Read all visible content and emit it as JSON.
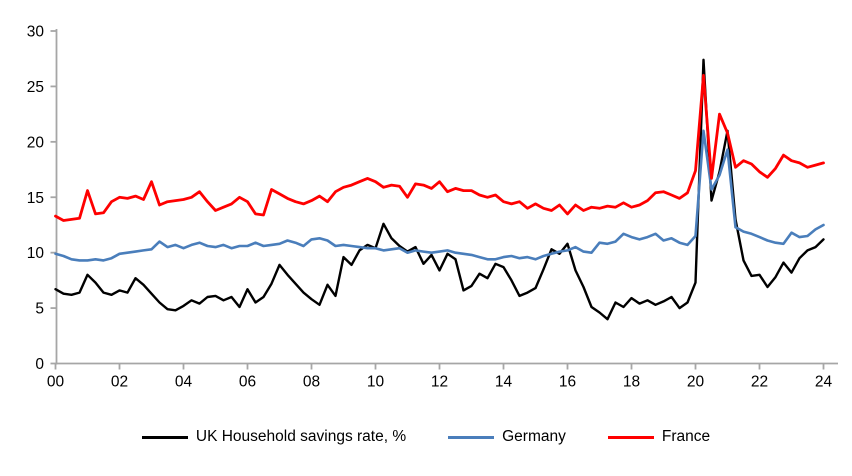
{
  "chart_data": {
    "type": "line",
    "title": "",
    "xlabel": "",
    "ylabel": "",
    "x_start_year": 2000,
    "x_step_years": 0.25,
    "x_end_year": 2024,
    "ylim": [
      0,
      30
    ],
    "y_ticks": [
      0,
      5,
      10,
      15,
      20,
      25,
      30
    ],
    "y_tick_labels": [
      "0",
      "5",
      "10",
      "15",
      "20",
      "25",
      "30"
    ],
    "x_tick_years": [
      2000,
      2002,
      2004,
      2006,
      2008,
      2010,
      2012,
      2014,
      2016,
      2018,
      2020,
      2022,
      2024
    ],
    "x_tick_labels": [
      "00",
      "02",
      "04",
      "06",
      "08",
      "10",
      "12",
      "14",
      "16",
      "18",
      "20",
      "22",
      "24"
    ],
    "grid": false,
    "legend_position": "bottom",
    "axis_color": "#a6a6a6",
    "tick_label_color": "#000000",
    "series": [
      {
        "name": "UK Household savings rate, %",
        "color": "#000000",
        "stroke_width": 2.4,
        "values": [
          6.7,
          6.3,
          6.2,
          6.4,
          8.0,
          7.3,
          6.4,
          6.2,
          6.6,
          6.4,
          7.7,
          7.1,
          6.3,
          5.5,
          4.9,
          4.8,
          5.2,
          5.7,
          5.4,
          6.0,
          6.1,
          5.7,
          6.0,
          5.1,
          6.7,
          5.5,
          6.0,
          7.2,
          8.9,
          8.0,
          7.2,
          6.4,
          5.8,
          5.3,
          7.1,
          6.1,
          9.6,
          8.9,
          10.2,
          10.7,
          10.4,
          12.6,
          11.3,
          10.6,
          10.1,
          10.5,
          9.0,
          9.8,
          8.4,
          9.9,
          9.4,
          6.6,
          7.0,
          8.1,
          7.7,
          9.0,
          8.7,
          7.5,
          6.1,
          6.4,
          6.8,
          8.5,
          10.3,
          9.9,
          10.8,
          8.4,
          6.9,
          5.1,
          4.6,
          4.0,
          5.5,
          5.1,
          5.9,
          5.4,
          5.7,
          5.3,
          5.6,
          6.0,
          5.0,
          5.5,
          7.3,
          27.4,
          14.7,
          17.3,
          21.0,
          13.0,
          9.3,
          7.9,
          8.0,
          6.9,
          7.8,
          9.1,
          8.2,
          9.5,
          10.2,
          10.5,
          11.2
        ]
      },
      {
        "name": "Germany",
        "color": "#4a7ebb",
        "stroke_width": 2.6,
        "values": [
          9.9,
          9.7,
          9.4,
          9.3,
          9.3,
          9.4,
          9.3,
          9.5,
          9.9,
          10.0,
          10.1,
          10.2,
          10.3,
          11.0,
          10.5,
          10.7,
          10.4,
          10.7,
          10.9,
          10.6,
          10.5,
          10.7,
          10.4,
          10.6,
          10.6,
          10.9,
          10.6,
          10.7,
          10.8,
          11.1,
          10.9,
          10.6,
          11.2,
          11.3,
          11.1,
          10.6,
          10.7,
          10.6,
          10.5,
          10.4,
          10.4,
          10.2,
          10.3,
          10.4,
          10.0,
          10.2,
          10.1,
          10.0,
          10.1,
          10.2,
          10.0,
          9.9,
          9.8,
          9.6,
          9.4,
          9.4,
          9.6,
          9.7,
          9.5,
          9.6,
          9.4,
          9.7,
          9.9,
          10.1,
          10.2,
          10.5,
          10.1,
          10.0,
          10.9,
          10.8,
          11.0,
          11.7,
          11.4,
          11.2,
          11.4,
          11.7,
          11.1,
          11.3,
          10.9,
          10.7,
          11.5,
          21.0,
          15.7,
          17.0,
          19.3,
          12.3,
          11.9,
          11.7,
          11.4,
          11.1,
          10.9,
          10.8,
          11.8,
          11.4,
          11.5,
          12.1,
          12.5
        ]
      },
      {
        "name": "France",
        "color": "#ff0000",
        "stroke_width": 2.8,
        "values": [
          13.3,
          12.9,
          13.0,
          13.1,
          15.6,
          13.5,
          13.6,
          14.6,
          15.0,
          14.9,
          15.1,
          14.8,
          16.4,
          14.3,
          14.6,
          14.7,
          14.8,
          15.0,
          15.5,
          14.6,
          13.8,
          14.1,
          14.4,
          15.0,
          14.6,
          13.5,
          13.4,
          15.7,
          15.3,
          14.9,
          14.6,
          14.4,
          14.7,
          15.1,
          14.6,
          15.5,
          15.9,
          16.1,
          16.4,
          16.7,
          16.4,
          15.9,
          16.1,
          16.0,
          15.0,
          16.2,
          16.1,
          15.8,
          16.4,
          15.5,
          15.8,
          15.6,
          15.6,
          15.2,
          15.0,
          15.2,
          14.6,
          14.4,
          14.6,
          14.0,
          14.4,
          14.0,
          13.8,
          14.3,
          13.5,
          14.3,
          13.8,
          14.1,
          14.0,
          14.2,
          14.1,
          14.5,
          14.1,
          14.3,
          14.7,
          15.4,
          15.5,
          15.2,
          14.9,
          15.4,
          17.4,
          26.0,
          16.7,
          22.5,
          20.8,
          17.7,
          18.3,
          18.0,
          17.3,
          16.8,
          17.6,
          18.8,
          18.3,
          18.1,
          17.7,
          17.9,
          18.1
        ]
      }
    ]
  }
}
